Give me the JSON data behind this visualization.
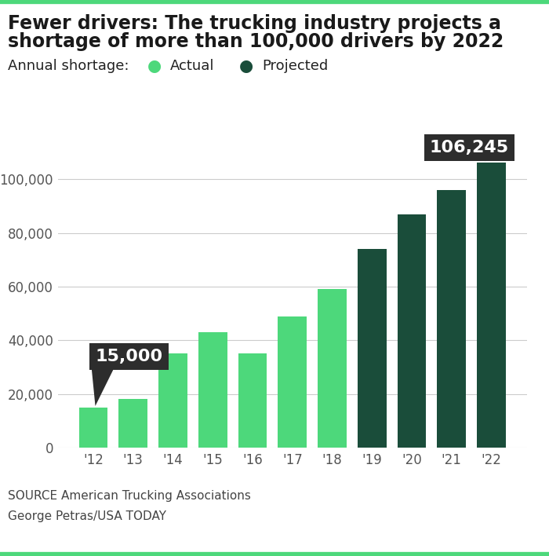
{
  "title_line1": "Fewer drivers: The trucking industry projects a",
  "title_line2": "shortage of more than 100,000 drivers by 2022",
  "legend_label": "Annual shortage:",
  "actual_label": "Actual",
  "projected_label": "Projected",
  "years": [
    "'12",
    "'13",
    "'14",
    "'15",
    "'16",
    "'17",
    "'18",
    "'19",
    "'20",
    "'21",
    "'22"
  ],
  "values": [
    15000,
    18000,
    35000,
    43000,
    35000,
    49000,
    59000,
    74000,
    87000,
    96000,
    106245
  ],
  "bar_types": [
    "actual",
    "actual",
    "actual",
    "actual",
    "actual",
    "actual",
    "actual",
    "projected",
    "projected",
    "projected",
    "projected"
  ],
  "actual_color": "#4DD87B",
  "projected_color": "#1A4D3A",
  "ylim": [
    0,
    115000
  ],
  "yticks": [
    0,
    20000,
    40000,
    60000,
    80000,
    100000
  ],
  "callout_first_value": "15,000",
  "callout_last_value": "106,245",
  "source_text": "SOURCE American Trucking Associations",
  "credit_text": "George Petras/USA TODAY",
  "background_color": "#ffffff",
  "top_border_color": "#4DD87B",
  "bottom_border_color": "#4DD87B",
  "annotation_bg_color": "#2d2d2d",
  "annotation_text_color": "#ffffff",
  "grid_color": "#cccccc",
  "title_color": "#1a1a1a",
  "axis_text_color": "#555555",
  "source_color": "#444444"
}
